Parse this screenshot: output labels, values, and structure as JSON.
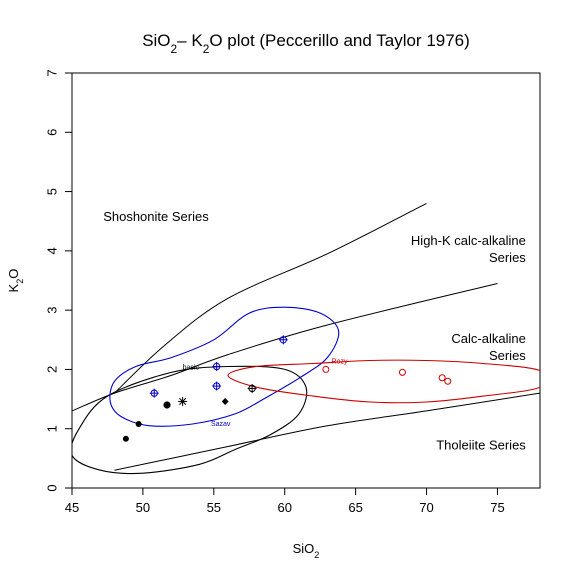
{
  "chart_data": {
    "type": "scatter",
    "title_parts": [
      "SiO",
      "2",
      "– K",
      "2",
      "O plot (Peccerillo and Taylor 1976)"
    ],
    "xlabel_parts": [
      "SiO",
      "2"
    ],
    "ylabel_parts": [
      "K",
      "2",
      "O"
    ],
    "xlim": [
      45,
      78
    ],
    "ylim": [
      0,
      7
    ],
    "x_ticks": [
      45,
      50,
      55,
      60,
      65,
      70,
      75
    ],
    "y_ticks": [
      0,
      1,
      2,
      3,
      4,
      5,
      6,
      7
    ],
    "grid": false,
    "boundary_lines": [
      {
        "name": "upper",
        "points": [
          [
            48,
            1.6
          ],
          [
            51.5,
            2.4
          ],
          [
            56,
            3.2
          ],
          [
            63,
            3.95
          ],
          [
            70,
            4.8
          ]
        ]
      },
      {
        "name": "middle",
        "points": [
          [
            45,
            1.3
          ],
          [
            48,
            1.6
          ],
          [
            52,
            1.9
          ],
          [
            56,
            2.25
          ],
          [
            63,
            2.75
          ],
          [
            75,
            3.45
          ]
        ]
      },
      {
        "name": "lower",
        "points": [
          [
            48,
            0.3
          ],
          [
            52,
            0.5
          ],
          [
            56,
            0.7
          ],
          [
            63,
            1.05
          ],
          [
            70,
            1.3
          ],
          [
            78,
            1.6
          ]
        ]
      }
    ],
    "field_labels": [
      {
        "lines": [
          "Shoshonite Series"
        ],
        "x": 47.2,
        "y": 4.5,
        "anchor": "start"
      },
      {
        "lines": [
          "High-K calc-alkaline",
          "Series"
        ],
        "x": 77.0,
        "y": 4.1,
        "anchor": "end"
      },
      {
        "lines": [
          "Calc-alkaline",
          "Series"
        ],
        "x": 77.0,
        "y": 2.45,
        "anchor": "end"
      },
      {
        "lines": [
          "Tholeiite Series"
        ],
        "x": 77.0,
        "y": 0.65,
        "anchor": "end"
      }
    ],
    "groups": [
      {
        "name": "basic",
        "color": "#000000",
        "label_x": 52.8,
        "label_y": 2.0,
        "ellipse_points": [
          [
            45,
            0.55
          ],
          [
            47,
            0.3
          ],
          [
            50,
            0.25
          ],
          [
            54,
            0.4
          ],
          [
            56.5,
            0.65
          ],
          [
            59,
            0.9
          ],
          [
            61,
            1.25
          ],
          [
            61.5,
            1.7
          ],
          [
            60,
            2.0
          ],
          [
            56,
            2.05
          ],
          [
            52,
            1.95
          ],
          [
            47.5,
            1.55
          ],
          [
            45.5,
            1.0
          ],
          [
            45,
            0.55
          ]
        ],
        "points": [
          {
            "x": 48.8,
            "y": 0.83,
            "marker": "dot"
          },
          {
            "x": 49.7,
            "y": 1.08,
            "marker": "dot"
          },
          {
            "x": 51.7,
            "y": 1.4,
            "marker": "dot-large"
          },
          {
            "x": 52.8,
            "y": 1.46,
            "marker": "asterisk"
          },
          {
            "x": 55.8,
            "y": 1.46,
            "marker": "diamond"
          },
          {
            "x": 57.7,
            "y": 1.68,
            "marker": "circle-plus"
          }
        ]
      },
      {
        "name": "Sazav",
        "color": "#0000cc",
        "label_x": 54.8,
        "label_y": 1.05,
        "ellipse_points": [
          [
            47.7,
            1.45
          ],
          [
            48.5,
            1.2
          ],
          [
            50.5,
            1.05
          ],
          [
            53.5,
            1.08
          ],
          [
            56.5,
            1.25
          ],
          [
            58.5,
            1.5
          ],
          [
            61,
            1.85
          ],
          [
            63,
            2.2
          ],
          [
            63.8,
            2.65
          ],
          [
            62.5,
            2.95
          ],
          [
            60,
            3.05
          ],
          [
            57.5,
            2.95
          ],
          [
            55,
            2.5
          ],
          [
            52,
            2.2
          ],
          [
            49.5,
            2.05
          ],
          [
            48,
            1.8
          ],
          [
            47.7,
            1.45
          ]
        ],
        "points": [
          {
            "x": 50.8,
            "y": 1.6,
            "marker": "circle-plus"
          },
          {
            "x": 55.2,
            "y": 2.05,
            "marker": "circle-plus"
          },
          {
            "x": 55.2,
            "y": 1.72,
            "marker": "circle-plus"
          },
          {
            "x": 59.9,
            "y": 2.5,
            "marker": "circle-plus"
          }
        ]
      },
      {
        "name": "Rozy",
        "color": "#cc0000",
        "label_x": 63.3,
        "label_y": 2.1,
        "ellipse_points": [
          [
            56,
            1.9
          ],
          [
            58,
            1.7
          ],
          [
            62,
            1.55
          ],
          [
            66,
            1.45
          ],
          [
            70,
            1.45
          ],
          [
            74,
            1.55
          ],
          [
            78,
            1.7
          ],
          [
            78,
            1.98
          ],
          [
            74,
            2.1
          ],
          [
            70,
            2.15
          ],
          [
            66,
            2.15
          ],
          [
            62,
            2.1
          ],
          [
            58,
            2.05
          ],
          [
            56,
            1.9
          ]
        ],
        "points": [
          {
            "x": 62.9,
            "y": 2.0,
            "marker": "circle"
          },
          {
            "x": 68.3,
            "y": 1.95,
            "marker": "circle"
          },
          {
            "x": 71.1,
            "y": 1.86,
            "marker": "circle"
          },
          {
            "x": 71.5,
            "y": 1.8,
            "marker": "circle"
          }
        ]
      }
    ]
  }
}
